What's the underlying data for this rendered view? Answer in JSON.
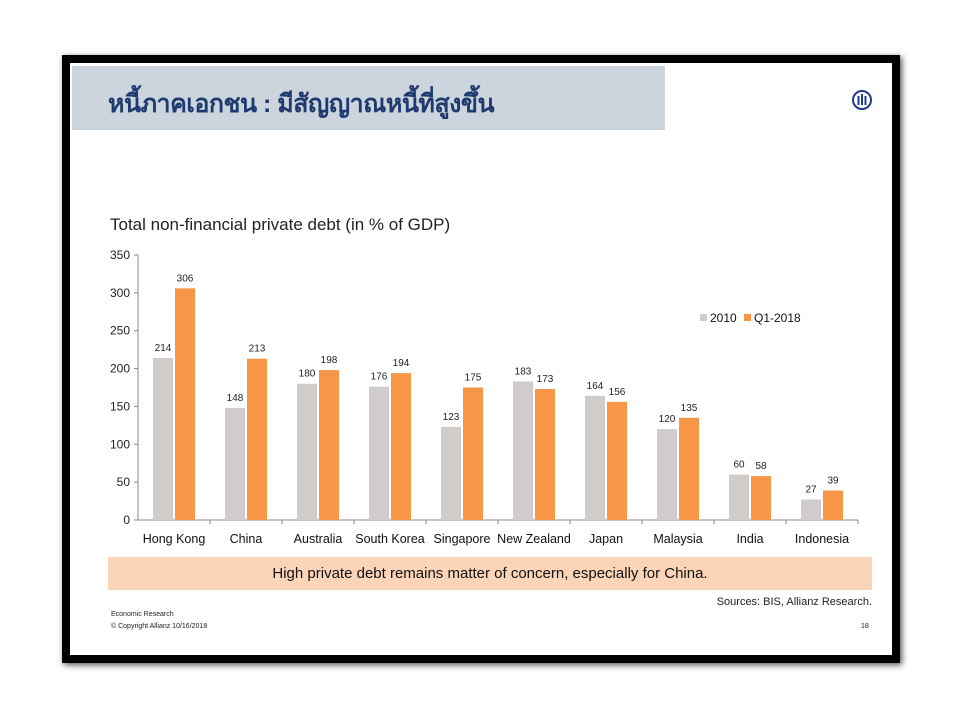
{
  "header": {
    "title": "หนี้ภาคเอกชน : มีสัญญาณหนี้ที่สูงขึ้น",
    "logo": "Allianz"
  },
  "chart_data": {
    "type": "bar",
    "title": "Total non-financial private debt (in % of GDP)",
    "categories": [
      "Hong Kong",
      "China",
      "Australia",
      "South Korea",
      "Singapore",
      "New Zealand",
      "Japan",
      "Malaysia",
      "India",
      "Indonesia"
    ],
    "series": [
      {
        "name": "2010",
        "color": "#d0cccc",
        "values": [
          214,
          148,
          180,
          176,
          123,
          183,
          164,
          120,
          60,
          27
        ]
      },
      {
        "name": "Q1-2018",
        "color": "#f79646",
        "values": [
          306,
          213,
          198,
          194,
          175,
          173,
          156,
          135,
          58,
          39
        ]
      }
    ],
    "ylim": [
      0,
      350
    ],
    "yticks": [
      0,
      50,
      100,
      150,
      200,
      250,
      300,
      350
    ],
    "legend": "top-right",
    "xlabel": "",
    "ylabel": ""
  },
  "banner": "High private debt remains matter of concern, especially for China.",
  "sources": "Sources: BIS, Allianz Research.",
  "footer": {
    "line1": "Economic Research",
    "line2": "© Copyright Allianz  10/16/2018",
    "page": "18"
  }
}
